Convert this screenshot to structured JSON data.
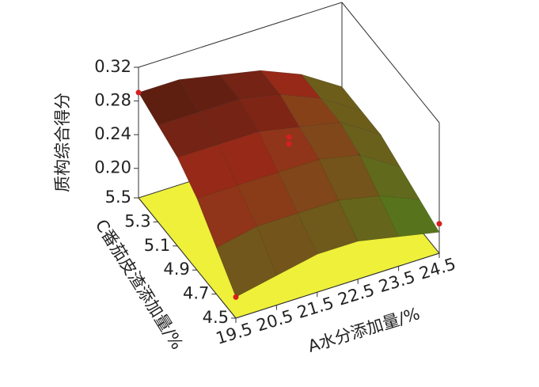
{
  "chart_data": {
    "type": "surface3d",
    "xlabel": "A水分添加量/%",
    "ylabel": "C番茄皮渣添加量/%",
    "zlabel": "质构综合得分",
    "x": [
      19.5,
      20.5,
      21.5,
      22.5,
      23.5,
      24.5
    ],
    "y": [
      4.5,
      4.7,
      4.9,
      5.1,
      5.3,
      5.5
    ],
    "z": [
      [
        0.19,
        0.2,
        0.21,
        0.21,
        0.2,
        0.19
      ],
      [
        0.22,
        0.23,
        0.23,
        0.23,
        0.22,
        0.2
      ],
      [
        0.25,
        0.25,
        0.25,
        0.25,
        0.24,
        0.21
      ],
      [
        0.27,
        0.27,
        0.27,
        0.26,
        0.25,
        0.22
      ],
      [
        0.28,
        0.28,
        0.28,
        0.27,
        0.25,
        0.22
      ],
      [
        0.29,
        0.29,
        0.28,
        0.27,
        0.25,
        0.22
      ]
    ],
    "xlim": [
      19.5,
      24.5
    ],
    "ylim": [
      4.5,
      5.5
    ],
    "zlim": [
      0.165,
      0.32
    ],
    "xticks": [
      19.5,
      20.5,
      21.5,
      22.5,
      23.5,
      24.5
    ],
    "yticks": [
      4.5,
      4.7,
      4.9,
      5.1,
      5.3,
      5.5
    ],
    "zticks": [
      {
        "value": 0.2,
        "label": "0.20"
      },
      0.24,
      0.28,
      0.32
    ],
    "floor_color": "#eef03a",
    "low_color": "#3f8f1e",
    "mid_color": "#9a2a18",
    "high_color": "#101008",
    "point_color": "#d42020",
    "points": {
      "x": [
        19.5,
        22,
        22,
        19.5,
        24.5
      ],
      "y": [
        5.5,
        5.0,
        5.0,
        4.5,
        4.5
      ],
      "z": [
        0.29,
        0.27,
        0.262,
        0.19,
        0.2
      ]
    }
  }
}
